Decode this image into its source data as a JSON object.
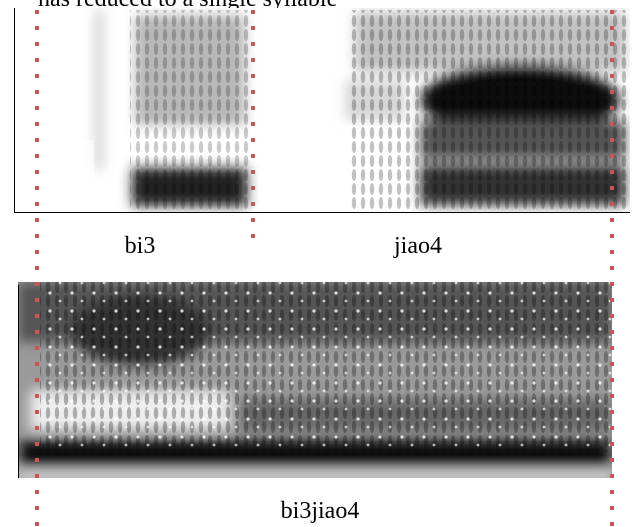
{
  "caption_fragment": "has reduced to a single syllable",
  "top_spectrogram": {
    "labels": [
      "bi3",
      "jiao4"
    ]
  },
  "bottom_spectrogram": {
    "label": "bi3jiao4"
  }
}
